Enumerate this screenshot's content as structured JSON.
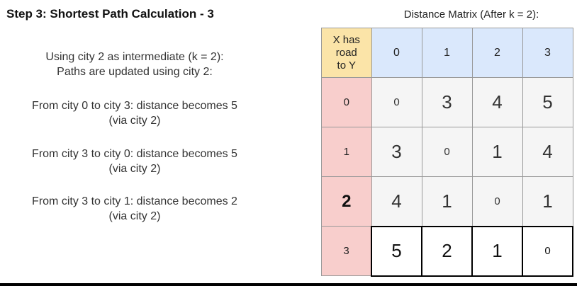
{
  "title": "Step 3: Shortest Path Calculation - 3",
  "intro": {
    "line1": "Using city 2 as intermediate (k = 2):",
    "line2": "Paths are updated using city 2:"
  },
  "updates": [
    {
      "line1": "From city 0 to city 3: distance becomes 5",
      "line2": "(via city 2)"
    },
    {
      "line1": "From city 3 to city 0: distance becomes 5",
      "line2": "(via city 2)"
    },
    {
      "line1": "From city 3 to city 1: distance becomes 2",
      "line2": "(via city 2)"
    }
  ],
  "matrix": {
    "title": "Distance Matrix (After k = 2):",
    "corner": [
      "X has",
      "road",
      "to Y"
    ],
    "columns": [
      "0",
      "1",
      "2",
      "3"
    ],
    "rows": [
      {
        "label": "0",
        "values": [
          "0",
          "3",
          "4",
          "5"
        ]
      },
      {
        "label": "1",
        "values": [
          "3",
          "0",
          "1",
          "4"
        ]
      },
      {
        "label": "2",
        "values": [
          "4",
          "1",
          "0",
          "1"
        ]
      },
      {
        "label": "3",
        "values": [
          "5",
          "2",
          "1",
          "0"
        ]
      }
    ],
    "highlighted_row": "2",
    "colors": {
      "corner": "#fbe4a8",
      "column_header": "#dae8fc",
      "row_header": "#f8cecc",
      "cell": "#f5f5f5"
    }
  }
}
